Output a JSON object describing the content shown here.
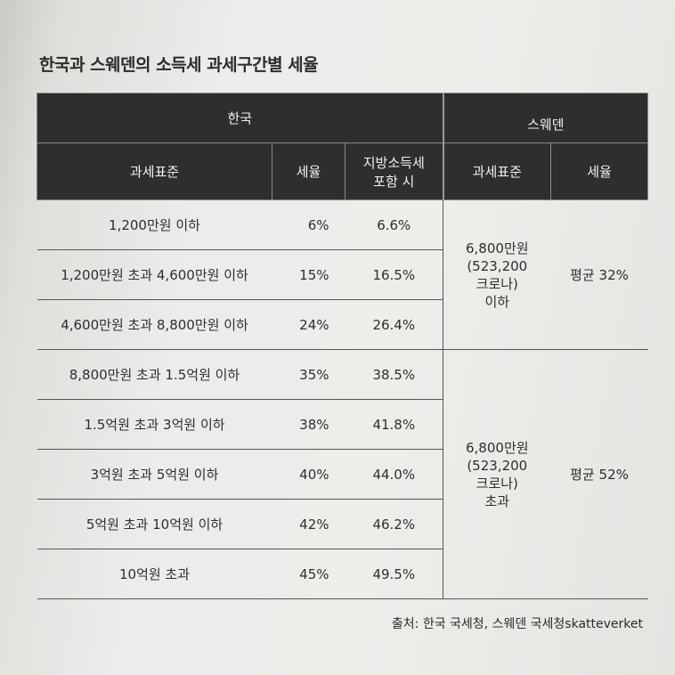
{
  "title": "한국과 스웨덴의 소득세 과세구간별 세율",
  "headers": {
    "korea": "한국",
    "sweden": "스웨덴",
    "kr_base": "과세표준",
    "kr_rate": "세율",
    "kr_local_1": "지방소득세",
    "kr_local_2": "포함 시",
    "se_base": "과세표준",
    "se_rate": "세율"
  },
  "korea_rows": [
    {
      "base": "1,200만원 이하",
      "rate": "6%",
      "local": "6.6%"
    },
    {
      "base": "1,200만원 초과 4,600만원 이하",
      "rate": "15%",
      "local": "16.5%"
    },
    {
      "base": "4,600만원 초과 8,800만원 이하",
      "rate": "24%",
      "local": "26.4%"
    },
    {
      "base": "8,800만원 초과 1.5억원 이하",
      "rate": "35%",
      "local": "38.5%"
    },
    {
      "base": "1.5억원 초과 3억원 이하",
      "rate": "38%",
      "local": "41.8%"
    },
    {
      "base": "3억원 초과 5억원 이하",
      "rate": "40%",
      "local": "44.0%"
    },
    {
      "base": "5억원 초과 10억원 이하",
      "rate": "42%",
      "local": "46.2%"
    },
    {
      "base": "10억원 초과",
      "rate": "45%",
      "local": "49.5%"
    }
  ],
  "sweden_rows": [
    {
      "base_l1": "6,800만원",
      "base_l2": "(523,200",
      "base_l3": "크로나)",
      "base_l4": "이하",
      "rate": "평균 32%"
    },
    {
      "base_l1": "6,800만원",
      "base_l2": "(523,200",
      "base_l3": "크로나)",
      "base_l4": "초과",
      "rate": "평균 52%"
    }
  ],
  "source": "출처: 한국 국세청, 스웨덴 국세청skatteverket"
}
